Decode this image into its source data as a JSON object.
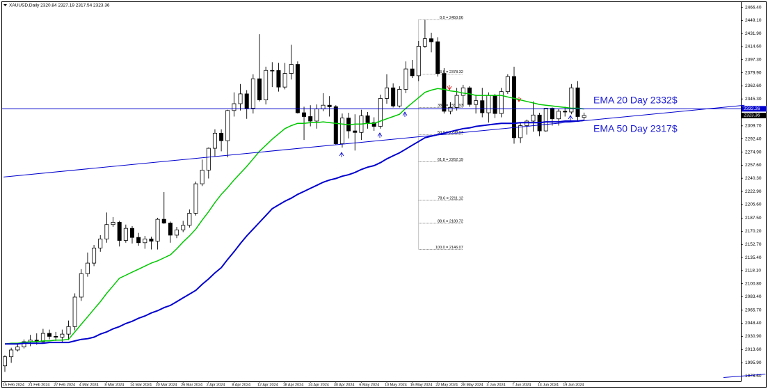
{
  "chart_data": {
    "type": "candlestick",
    "title": "XAUUSD,Daily  2320.84 2327.19 2317.54 2323.36",
    "categories": [
      "15 Feb 2024",
      null,
      null,
      null,
      "21 Feb 2024",
      null,
      null,
      null,
      "27 Feb 2024",
      null,
      null,
      null,
      "4 Mar 2024",
      null,
      null,
      null,
      "8 Mar 2024",
      null,
      null,
      null,
      "14 Mar 2024",
      null,
      null,
      null,
      "20 Mar 2024",
      null,
      null,
      null,
      "26 Mar 2024",
      null,
      null,
      null,
      "2 Apr 2024",
      null,
      null,
      null,
      "8 Apr 2024",
      null,
      null,
      null,
      "12 Apr 2024",
      null,
      null,
      null,
      "18 Apr 2024",
      null,
      null,
      null,
      "24 Apr 2024",
      null,
      null,
      null,
      "30 Apr 2024",
      null,
      null,
      null,
      "6 May 2024",
      null,
      null,
      null,
      "10 May 2024",
      null,
      null,
      null,
      "16 May 2024",
      null,
      null,
      null,
      "22 May 2024",
      null,
      null,
      null,
      "28 May 2024",
      null,
      null,
      null,
      "3 Jun 2024",
      null,
      null,
      null,
      "7 Jun 2024",
      null,
      null,
      null,
      "13 Jun 2024",
      null,
      null,
      null,
      "19 Jun 2024",
      null,
      null,
      null
    ],
    "open": [
      1992,
      2004,
      2013,
      2017,
      2024,
      2026,
      2024,
      2035,
      2031,
      2030,
      2034,
      2044,
      2083,
      2114,
      2128,
      2148,
      2160,
      2179,
      2182,
      2158,
      2174,
      2162,
      2155,
      2160,
      2157,
      2186,
      2181,
      2165,
      2172,
      2178,
      2194,
      2233,
      2251,
      2280,
      2300,
      2290,
      2330,
      2339,
      2352,
      2333,
      2372,
      2344,
      2383,
      2383,
      2361,
      2379,
      2391,
      2327,
      2322,
      2316,
      2332,
      2337,
      2335,
      2286,
      2320,
      2303,
      2301,
      2323,
      2314,
      2309,
      2346,
      2360,
      2336,
      2358,
      2385,
      2376,
      2415,
      2425,
      2421,
      2379,
      2329,
      2334,
      2350,
      2360,
      2338,
      2343,
      2327,
      2350,
      2326,
      2355,
      2375,
      2294,
      2310,
      2316,
      2324,
      2303,
      2333,
      2319,
      2329,
      2328,
      2360,
      2320.84
    ],
    "high": [
      2006,
      2016,
      2022,
      2027,
      2033,
      2035,
      2041,
      2040,
      2037,
      2040,
      2052,
      2088,
      2120,
      2142,
      2152,
      2165,
      2195,
      2189,
      2184,
      2179,
      2177,
      2168,
      2164,
      2163,
      2188,
      2222,
      2183,
      2176,
      2184,
      2199,
      2236,
      2265,
      2281,
      2305,
      2305,
      2331,
      2354,
      2365,
      2357,
      2378,
      2431,
      2388,
      2394,
      2393,
      2393,
      2417,
      2395,
      2335,
      2337,
      2338,
      2353,
      2349,
      2337,
      2326,
      2327,
      2325,
      2331,
      2328,
      2321,
      2351,
      2378,
      2366,
      2362,
      2395,
      2397,
      2422,
      2450,
      2433,
      2427,
      2386,
      2341,
      2360,
      2364,
      2362,
      2351,
      2360,
      2354,
      2352,
      2360,
      2378,
      2388,
      2314,
      2318,
      2342,
      2327,
      2333,
      2334,
      2332,
      2335,
      2365,
      2369,
      2327.19
    ],
    "low": [
      1984,
      1996,
      2011,
      2015,
      2018,
      2020,
      2022,
      2027,
      2025,
      2024,
      2026,
      2039,
      2078,
      2110,
      2124,
      2143,
      2155,
      2176,
      2150,
      2155,
      2154,
      2151,
      2147,
      2146,
      2146,
      2180,
      2155,
      2161,
      2169,
      2175,
      2191,
      2230,
      2240,
      2269,
      2276,
      2268,
      2322,
      2330,
      2319,
      2326,
      2342,
      2338,
      2361,
      2355,
      2358,
      2371,
      2326,
      2291,
      2309,
      2306,
      2329,
      2322,
      2285,
      2281,
      2293,
      2277,
      2291,
      2306,
      2303,
      2306,
      2339,
      2334,
      2334,
      2353,
      2373,
      2369,
      2413,
      2407,
      2375,
      2326,
      2325,
      2330,
      2335,
      2335,
      2326,
      2321,
      2314,
      2320,
      2321,
      2352,
      2286,
      2287,
      2298,
      2302,
      2296,
      2302,
      2310,
      2310,
      2322,
      2325,
      2316,
      2317.54
    ],
    "close": [
      2004,
      2013,
      2017,
      2024,
      2026,
      2024,
      2035,
      2031,
      2030,
      2034,
      2044,
      2083,
      2114,
      2128,
      2148,
      2160,
      2179,
      2182,
      2158,
      2174,
      2162,
      2155,
      2160,
      2157,
      2186,
      2181,
      2165,
      2172,
      2178,
      2194,
      2233,
      2251,
      2280,
      2300,
      2290,
      2330,
      2339,
      2352,
      2333,
      2372,
      2344,
      2383,
      2383,
      2361,
      2379,
      2391,
      2327,
      2322,
      2316,
      2332,
      2337,
      2335,
      2286,
      2320,
      2303,
      2301,
      2323,
      2314,
      2309,
      2346,
      2360,
      2336,
      2358,
      2385,
      2376,
      2415,
      2425,
      2421,
      2379,
      2329,
      2334,
      2350,
      2360,
      2338,
      2343,
      2327,
      2350,
      2326,
      2355,
      2375,
      2294,
      2310,
      2316,
      2324,
      2303,
      2333,
      2319,
      2329,
      2328,
      2360,
      2322,
      2323.36
    ],
    "ema_lines": [
      {
        "color": "#00c800",
        "values": [
          2021,
          2022,
          2022,
          2023,
          2024,
          2024,
          2025,
          2025,
          2026,
          2026,
          2027,
          2037,
          2047,
          2057,
          2067,
          2077,
          2088,
          2098,
          2108,
          2112,
          2116,
          2120,
          2124,
          2128,
          2131,
          2135,
          2139,
          2147,
          2156,
          2164,
          2173,
          2185,
          2196,
          2208,
          2219,
          2228,
          2238,
          2247,
          2256,
          2266,
          2276,
          2284,
          2292,
          2299,
          2306,
          2310,
          2313,
          2313,
          2314,
          2314,
          2315,
          2314,
          2313,
          2312,
          2311,
          2312,
          2312,
          2313,
          2313,
          2316,
          2319,
          2322,
          2325,
          2333,
          2340,
          2347,
          2354,
          2357,
          2359,
          2358,
          2356,
          2355,
          2353,
          2352,
          2350,
          2350,
          2350,
          2350,
          2350,
          2348,
          2346,
          2344,
          2342,
          2340,
          2338,
          2337,
          2336,
          2335,
          2334,
          2333,
          2333,
          2332
        ]
      },
      {
        "color": "#0000cd",
        "values": [
          2021,
          2021,
          2021,
          2022,
          2022,
          2022,
          2022,
          2023,
          2023,
          2023,
          2023,
          2025,
          2027,
          2028,
          2030,
          2034,
          2037,
          2041,
          2044,
          2048,
          2051,
          2055,
          2058,
          2062,
          2065,
          2069,
          2072,
          2077,
          2082,
          2087,
          2092,
          2100,
          2107,
          2115,
          2122,
          2133,
          2143,
          2154,
          2164,
          2173,
          2182,
          2191,
          2200,
          2205,
          2210,
          2214,
          2219,
          2223,
          2227,
          2231,
          2235,
          2238,
          2240,
          2243,
          2245,
          2248,
          2252,
          2255,
          2257,
          2261,
          2266,
          2270,
          2274,
          2279,
          2284,
          2289,
          2294,
          2296,
          2298,
          2300,
          2302,
          2304,
          2306,
          2307,
          2309,
          2310,
          2311,
          2312,
          2313,
          2313,
          2313,
          2314,
          2314,
          2314,
          2314,
          2315,
          2315,
          2315,
          2316,
          2316,
          2316,
          2317
        ]
      }
    ],
    "hline": {
      "value": 2332.26,
      "color": "#0000cd"
    },
    "trend_lines": [
      {
        "x": [
          -0.2,
          116.2
        ],
        "y": [
          2242,
          2337
        ],
        "color": "#0000cd"
      },
      {
        "x": [
          112.9,
          119.5
        ],
        "y": [
          1976.6,
          1981
        ],
        "color": "#0000cd"
      }
    ],
    "fibonacci": {
      "x": [
        65,
        72
      ],
      "levels": [
        {
          "value": 2450.06,
          "label": "0.0 = 2450.06"
        },
        {
          "value": 2378.32,
          "label": "23.6 = 2378.32"
        },
        {
          "value": 2333.93,
          "label": "38.2 = 2333.93"
        },
        {
          "value": 2298.07,
          "label": "50.0 = 2298.07"
        },
        {
          "value": 2262.19,
          "label": "61.8 = 2262.19"
        },
        {
          "value": 2211.12,
          "label": "78.6 = 2211.12"
        },
        {
          "value": 2180.72,
          "label": "88.6 = 2180.72"
        },
        {
          "value": 2146.07,
          "label": "100.0 = 2146.07"
        }
      ]
    },
    "annotations": [
      "EMA 20 Day  2332$",
      "EMA 50 Day  2317$"
    ],
    "ylim": [
      1971.5,
      2473.5
    ],
    "yticks": [
      {
        "value": 2466.4,
        "label": "2466.40"
      },
      {
        "value": 2449.1,
        "label": "2449.10"
      },
      {
        "value": 2431.9,
        "label": "2431.90"
      },
      {
        "value": 2414.6,
        "label": "2414.60"
      },
      {
        "value": 2397.3,
        "label": "2397.30"
      },
      {
        "value": 2379.9,
        "label": "2379.90"
      },
      {
        "value": 2362.6,
        "label": "2362.60"
      },
      {
        "value": 2345.3,
        "label": "2345.30"
      },
      {
        "value": 2309.7,
        "label": "2309.70"
      },
      {
        "value": 2292.4,
        "label": "2292.40"
      },
      {
        "value": 2274.9,
        "label": "2274.90"
      },
      {
        "value": 2257.6,
        "label": "2257.60"
      },
      {
        "value": 2240.3,
        "label": "2240.30"
      },
      {
        "value": 2222.9,
        "label": "2222.90"
      },
      {
        "value": 2205.6,
        "label": "2205.60"
      },
      {
        "value": 2187.5,
        "label": "2187.50"
      },
      {
        "value": 2170.2,
        "label": "2170.20"
      },
      {
        "value": 2152.7,
        "label": "2152.70"
      },
      {
        "value": 2135.4,
        "label": "2135.40"
      },
      {
        "value": 2118.1,
        "label": "2118.10"
      },
      {
        "value": 2100.8,
        "label": "2100.80"
      },
      {
        "value": 2083.4,
        "label": "2083.40"
      },
      {
        "value": 2065.7,
        "label": "2065.70"
      },
      {
        "value": 2048.4,
        "label": "2048.40"
      },
      {
        "value": 2030.9,
        "label": "2030.90"
      },
      {
        "value": 2013.6,
        "label": "2013.60"
      },
      {
        "value": 1995.9,
        "label": "1995.90"
      },
      {
        "value": 1978.6,
        "label": "1978.60"
      }
    ],
    "up_color": "#ffffff",
    "down_color": "#000000"
  }
}
